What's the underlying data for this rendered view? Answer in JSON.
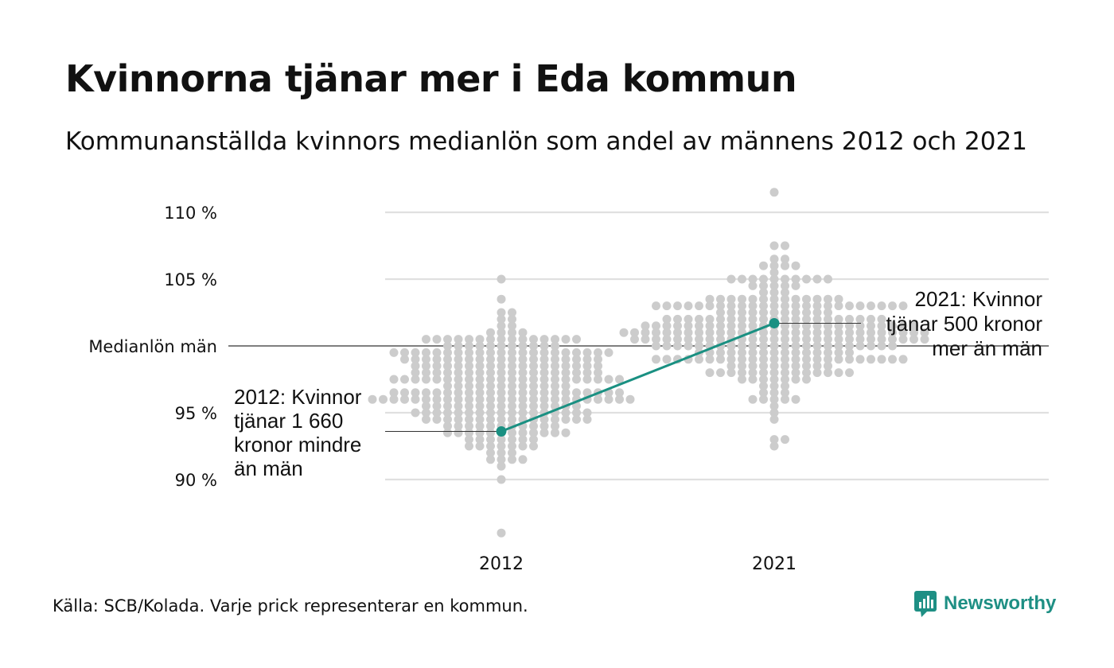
{
  "title": "Kvinnorna tjänar mer i Eda kommun",
  "subtitle": "Kommunanställda kvinnors medianlön som andel av männens 2012 och 2021",
  "source": "Källa: SCB/Kolada. Varje prick representerar en kommun.",
  "brand": "Newsworthy",
  "colors": {
    "highlight": "#1a9082",
    "dots": "#cccccc",
    "grid": "#e0e0e0",
    "baseline": "#333333",
    "brand": "#1e8f84"
  },
  "chart_data": {
    "type": "scatter",
    "categories": [
      "2012",
      "2021"
    ],
    "y_ticks": [
      {
        "value": 90,
        "label": "90 %"
      },
      {
        "value": 95,
        "label": "95 %"
      },
      {
        "value": 100,
        "label": "Medianlön män"
      },
      {
        "value": 105,
        "label": "105 %"
      },
      {
        "value": 110,
        "label": "110 %"
      }
    ],
    "ylim": [
      86,
      111.5
    ],
    "grid": true,
    "reference_line": {
      "value": 100,
      "label": "Medianlön män"
    },
    "highlight": {
      "values": [
        93.6,
        101.7
      ],
      "annotations": [
        {
          "category": "2012",
          "lines": [
            "2012: Kvinnor",
            "tjänar 1 660",
            "kronor mindre",
            "än män"
          ]
        },
        {
          "category": "2021",
          "lines": [
            "2021: Kvinnor",
            "tjänar 500 kronor",
            "mer än män"
          ]
        }
      ]
    },
    "distribution": [
      {
        "category": "2012",
        "n": 290,
        "min": 86.0,
        "max": 105.1,
        "center": 96.8,
        "spread": 2.6
      },
      {
        "category": "2021",
        "n": 290,
        "min": 92.5,
        "max": 111.4,
        "center": 101.0,
        "spread": 2.3
      }
    ]
  }
}
